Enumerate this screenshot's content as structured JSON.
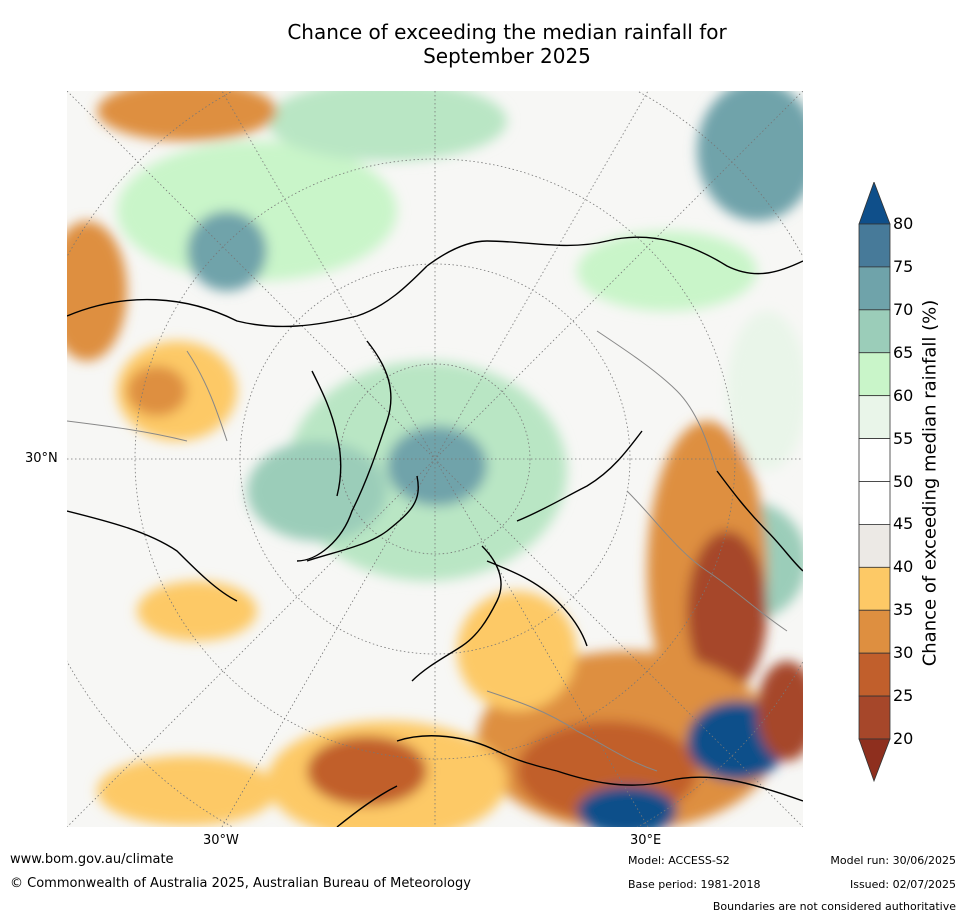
{
  "title": {
    "line1": "Chance of exceeding the median rainfall for",
    "line2": "September 2025"
  },
  "map": {
    "projection": "north polar stereographic",
    "lat_label": "30°N",
    "lon_labels": [
      "30°W",
      "30°E"
    ]
  },
  "colorbar": {
    "label": "Chance of exceeding median rainfall (%)",
    "ticks": [
      "80",
      "75",
      "70",
      "65",
      "60",
      "55",
      "50",
      "45",
      "40",
      "35",
      "30",
      "25",
      "20"
    ],
    "colors": [
      "#0f4f8a",
      "#477a99",
      "#6fa3aa",
      "#9bcdb9",
      "#c9f5c9",
      "#e9f5e9",
      "#ffffff",
      "#ffffff",
      "#ece9e5",
      "#fdc966",
      "#de8f40",
      "#c15f2c",
      "#a6472a",
      "#8e2f1e"
    ]
  },
  "footer": {
    "url": "www.bom.gov.au/climate",
    "copyright": "© Commonwealth of Australia 2025, Australian Bureau of Meteorology",
    "model": "Model: ACCESS-S2",
    "base_period": "Base period: 1981-2018",
    "model_run": "Model run: 30/06/2025",
    "issued": "Issued: 02/07/2025",
    "disclaimer": "Boundaries are not considered authoritative"
  }
}
